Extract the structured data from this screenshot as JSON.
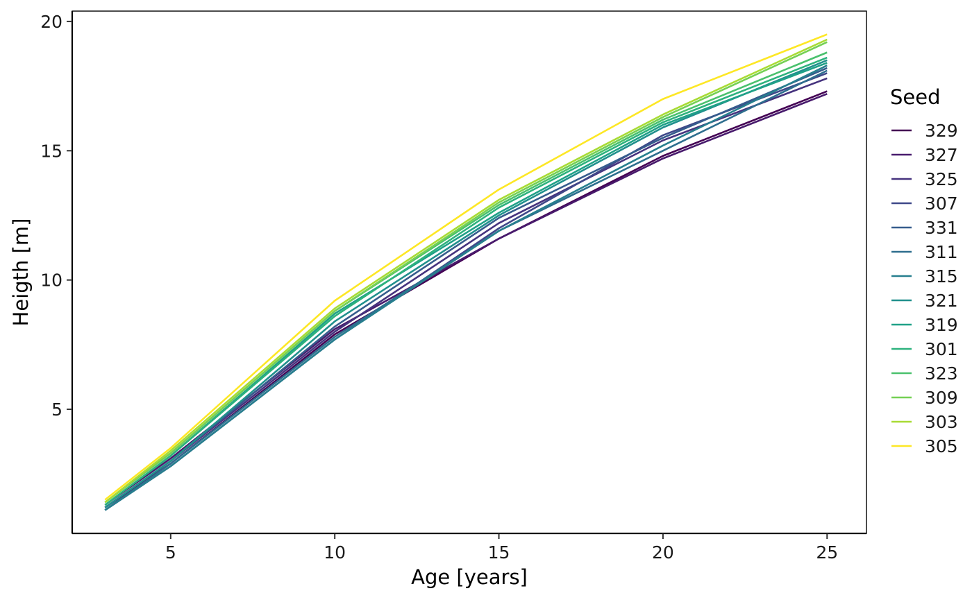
{
  "chart_data": {
    "type": "line",
    "title": "",
    "xlabel": "Age  [years]",
    "ylabel": "Heigth  [m]",
    "x": [
      3,
      5,
      10,
      15,
      20,
      25
    ],
    "xlim": [
      2,
      26.2
    ],
    "ylim": [
      0.2,
      20.4
    ],
    "xticks": [
      5,
      10,
      15,
      20,
      25
    ],
    "yticks": [
      5,
      10,
      15,
      20
    ],
    "grid": false,
    "legend": {
      "title": "Seed",
      "placement": "right"
    },
    "series": [
      {
        "name": "329",
        "color": "#440154",
        "values": [
          1.2,
          2.9,
          7.9,
          11.6,
          14.8,
          17.3
        ]
      },
      {
        "name": "327",
        "color": "#481B6D",
        "values": [
          1.3,
          3.1,
          8.1,
          11.6,
          14.7,
          17.2
        ]
      },
      {
        "name": "325",
        "color": "#46337E",
        "values": [
          1.2,
          3.0,
          8.0,
          12.2,
          15.4,
          17.8
        ]
      },
      {
        "name": "307",
        "color": "#3F4889",
        "values": [
          1.1,
          2.8,
          7.7,
          12.0,
          15.6,
          18.0
        ]
      },
      {
        "name": "331",
        "color": "#365C8D",
        "values": [
          1.2,
          3.0,
          8.2,
          12.4,
          15.5,
          18.2
        ]
      },
      {
        "name": "311",
        "color": "#2E6E8E",
        "values": [
          1.1,
          2.9,
          7.8,
          11.9,
          15.0,
          18.1
        ]
      },
      {
        "name": "315",
        "color": "#277F8E",
        "values": [
          1.1,
          2.8,
          7.7,
          11.9,
          15.2,
          18.3
        ]
      },
      {
        "name": "321",
        "color": "#21908D",
        "values": [
          1.2,
          3.0,
          8.4,
          12.5,
          15.9,
          18.5
        ]
      },
      {
        "name": "319",
        "color": "#1FA187",
        "values": [
          1.3,
          3.2,
          8.7,
          12.6,
          16.0,
          18.4
        ]
      },
      {
        "name": "301",
        "color": "#2DB27D",
        "values": [
          1.3,
          3.2,
          8.6,
          12.8,
          16.1,
          18.6
        ]
      },
      {
        "name": "323",
        "color": "#4AC16D",
        "values": [
          1.4,
          3.3,
          8.8,
          12.9,
          16.2,
          18.8
        ]
      },
      {
        "name": "309",
        "color": "#75D054",
        "values": [
          1.4,
          3.3,
          8.8,
          13.0,
          16.3,
          19.2
        ]
      },
      {
        "name": "303",
        "color": "#A8DB34",
        "values": [
          1.4,
          3.4,
          8.9,
          13.1,
          16.4,
          19.3
        ]
      },
      {
        "name": "305",
        "color": "#FDE725",
        "values": [
          1.5,
          3.5,
          9.2,
          13.5,
          17.0,
          19.5
        ]
      }
    ]
  }
}
